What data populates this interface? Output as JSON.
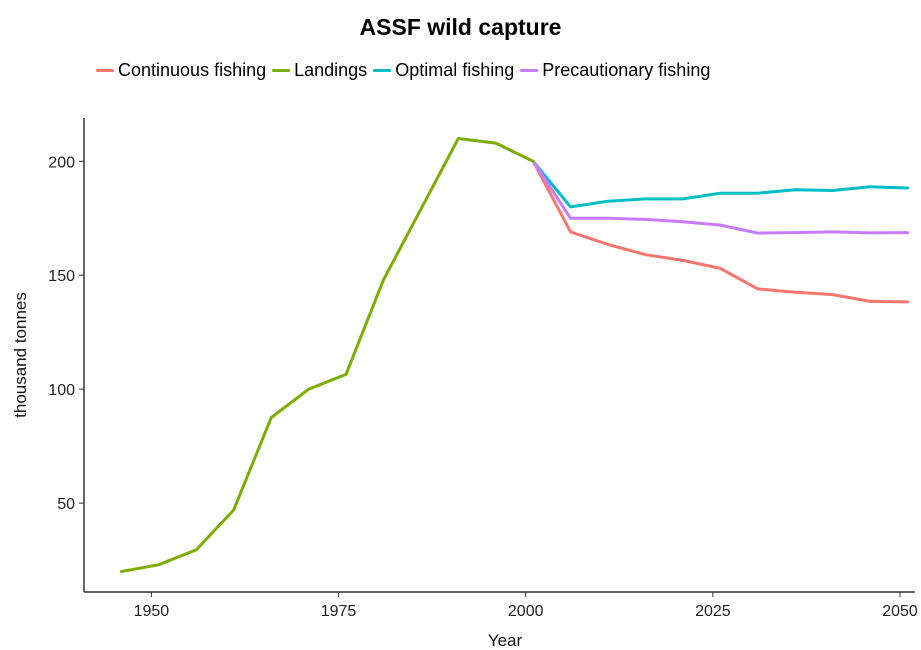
{
  "chart_data": {
    "type": "line",
    "title": "ASSF wild capture",
    "xlabel": "Year",
    "ylabel": "thousand tonnes",
    "xlim": [
      1941,
      2052
    ],
    "ylim": [
      11,
      219
    ],
    "x_ticks": [
      1950,
      1975,
      2000,
      2025,
      2050
    ],
    "y_ticks": [
      50,
      100,
      150,
      200
    ],
    "grid": false,
    "legend_position": "top",
    "series": [
      {
        "name": "Continuous fishing",
        "color": "#F8766D",
        "x": [
          2001,
          2006,
          2011,
          2016,
          2021,
          2026,
          2031,
          2036,
          2041,
          2046,
          2051
        ],
        "y": [
          200,
          169,
          163.5,
          159,
          156.5,
          153,
          144,
          142.5,
          141.5,
          138.5,
          138.3
        ]
      },
      {
        "name": "Landings",
        "color": "#7CAE00",
        "x": [
          1946,
          1951,
          1956,
          1961,
          1966,
          1971,
          1976,
          1981,
          1986,
          1991,
          1996,
          2001
        ],
        "y": [
          20,
          23,
          29.5,
          47,
          87.5,
          100,
          106.5,
          148,
          179,
          210,
          208,
          200
        ]
      },
      {
        "name": "Optimal fishing",
        "color": "#00BFC4",
        "x": [
          2001,
          2006,
          2011,
          2016,
          2021,
          2026,
          2031,
          2036,
          2041,
          2046,
          2051
        ],
        "y": [
          200,
          180,
          182.5,
          183.5,
          183.5,
          186,
          186,
          187.5,
          187.2,
          188.8,
          188.3
        ]
      },
      {
        "name": "Precautionary fishing",
        "color": "#C77CFF",
        "x": [
          2001,
          2006,
          2011,
          2016,
          2021,
          2026,
          2031,
          2036,
          2041,
          2046,
          2051
        ],
        "y": [
          200,
          175,
          175,
          174.5,
          173.5,
          172,
          168.5,
          168.7,
          169,
          168.6,
          168.7
        ]
      }
    ]
  }
}
